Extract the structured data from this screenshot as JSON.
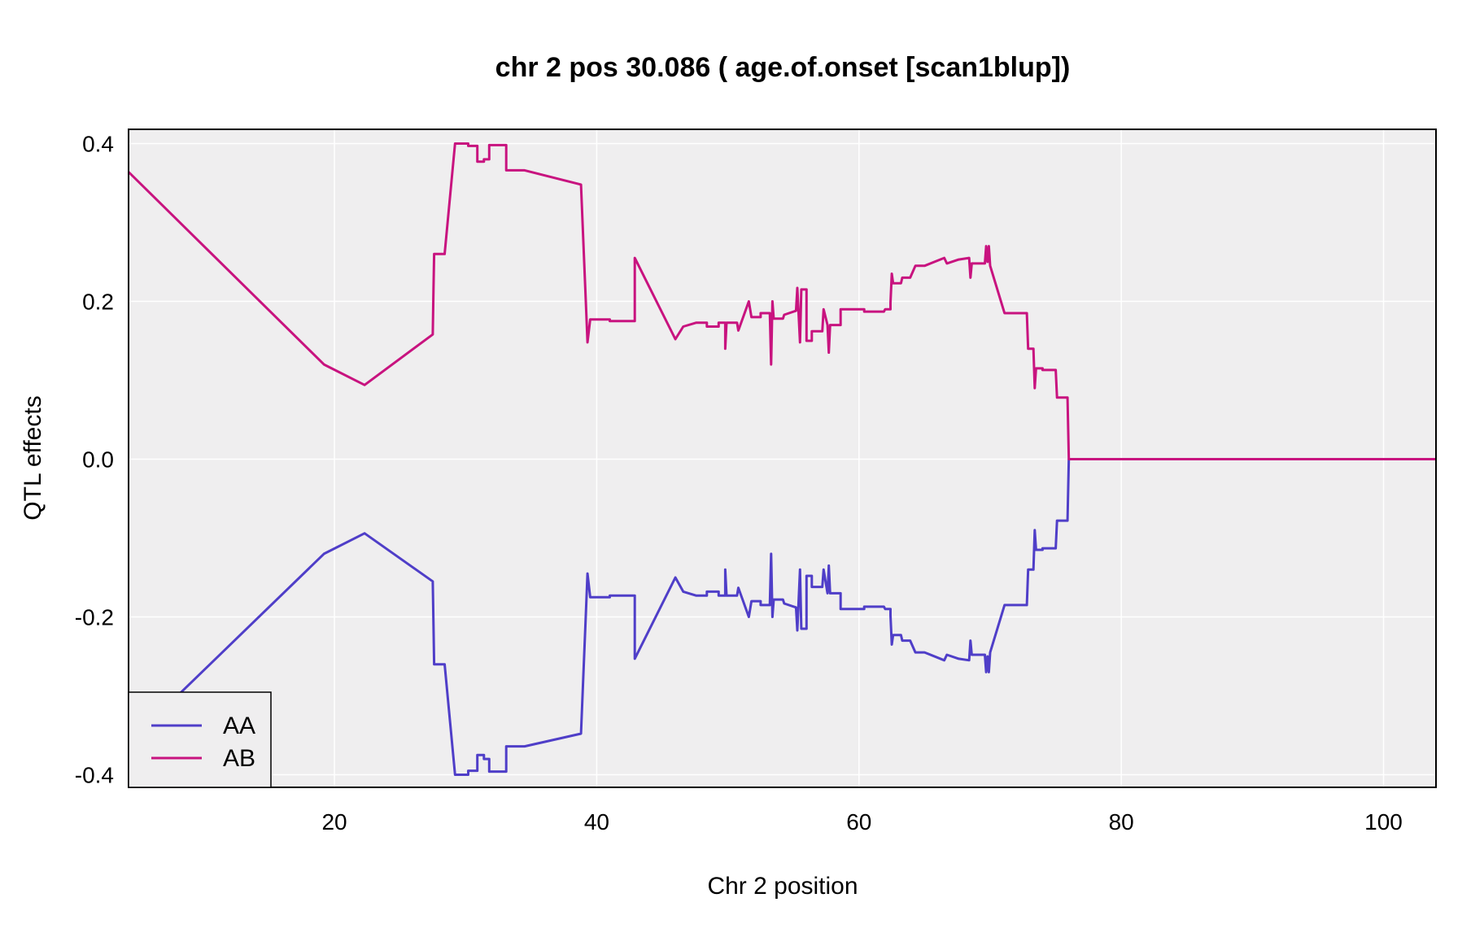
{
  "chart_data": {
    "type": "line",
    "title": "chr 2 pos 30.086 ( age.of.onset  [scan1blup])",
    "xlabel": "Chr 2 position",
    "ylabel": "QTL effects",
    "xlim": [
      4.3,
      104
    ],
    "ylim": [
      -0.416,
      0.418
    ],
    "xticks": [
      20,
      40,
      60,
      80,
      100
    ],
    "ytick_values": [
      0.4,
      0.2,
      0.0,
      -0.2,
      -0.4
    ],
    "ytick_labels": [
      "0.4",
      "0.2",
      "0.0",
      "-0.2",
      "-0.4"
    ],
    "grid": true,
    "legend_position": "bottom-left",
    "series": [
      {
        "name": "AA",
        "color": "#4f3ec8",
        "points": [
          [
            4.3,
            -0.36
          ],
          [
            19.2,
            -0.12
          ],
          [
            22.3,
            -0.094
          ],
          [
            27.5,
            -0.155
          ],
          [
            27.55,
            -0.21
          ],
          [
            27.6,
            -0.26
          ],
          [
            28.4,
            -0.26
          ],
          [
            29.2,
            -0.4
          ],
          [
            30.2,
            -0.4
          ],
          [
            30.2,
            -0.395
          ],
          [
            30.9,
            -0.395
          ],
          [
            30.9,
            -0.375
          ],
          [
            31.4,
            -0.375
          ],
          [
            31.4,
            -0.38
          ],
          [
            31.8,
            -0.38
          ],
          [
            31.8,
            -0.396
          ],
          [
            33.1,
            -0.396
          ],
          [
            33.1,
            -0.364
          ],
          [
            34.5,
            -0.364
          ],
          [
            38.8,
            -0.348
          ],
          [
            39.3,
            -0.145
          ],
          [
            39.5,
            -0.175
          ],
          [
            41.0,
            -0.175
          ],
          [
            41.0,
            -0.173
          ],
          [
            42.9,
            -0.173
          ],
          [
            42.9,
            -0.253
          ],
          [
            46.0,
            -0.15
          ],
          [
            46.6,
            -0.168
          ],
          [
            47.6,
            -0.173
          ],
          [
            48.4,
            -0.173
          ],
          [
            48.4,
            -0.168
          ],
          [
            49.3,
            -0.168
          ],
          [
            49.3,
            -0.173
          ],
          [
            49.8,
            -0.173
          ],
          [
            49.8,
            -0.14
          ],
          [
            49.9,
            -0.173
          ],
          [
            50.7,
            -0.173
          ],
          [
            50.8,
            -0.163
          ],
          [
            51.6,
            -0.2
          ],
          [
            51.8,
            -0.18
          ],
          [
            52.5,
            -0.18
          ],
          [
            52.5,
            -0.185
          ],
          [
            53.2,
            -0.185
          ],
          [
            53.3,
            -0.12
          ],
          [
            53.4,
            -0.2
          ],
          [
            53.5,
            -0.178
          ],
          [
            54.2,
            -0.178
          ],
          [
            54.3,
            -0.183
          ],
          [
            55.2,
            -0.188
          ],
          [
            55.3,
            -0.217
          ],
          [
            55.5,
            -0.14
          ],
          [
            55.6,
            -0.215
          ],
          [
            56.0,
            -0.215
          ],
          [
            56.0,
            -0.148
          ],
          [
            56.4,
            -0.148
          ],
          [
            56.4,
            -0.162
          ],
          [
            57.2,
            -0.162
          ],
          [
            57.3,
            -0.14
          ],
          [
            57.6,
            -0.17
          ],
          [
            57.7,
            -0.135
          ],
          [
            57.8,
            -0.17
          ],
          [
            58.6,
            -0.17
          ],
          [
            58.6,
            -0.19
          ],
          [
            60.4,
            -0.19
          ],
          [
            60.4,
            -0.187
          ],
          [
            61.9,
            -0.187
          ],
          [
            62.0,
            -0.19
          ],
          [
            62.4,
            -0.19
          ],
          [
            62.4,
            -0.198
          ],
          [
            62.5,
            -0.235
          ],
          [
            62.6,
            -0.223
          ],
          [
            63.2,
            -0.223
          ],
          [
            63.3,
            -0.23
          ],
          [
            63.9,
            -0.23
          ],
          [
            64.3,
            -0.245
          ],
          [
            65.0,
            -0.245
          ],
          [
            66.5,
            -0.255
          ],
          [
            66.7,
            -0.248
          ],
          [
            67.6,
            -0.253
          ],
          [
            68.4,
            -0.255
          ],
          [
            68.5,
            -0.23
          ],
          [
            68.6,
            -0.248
          ],
          [
            69.6,
            -0.248
          ],
          [
            69.7,
            -0.27
          ],
          [
            69.8,
            -0.25
          ],
          [
            69.9,
            -0.27
          ],
          [
            70.0,
            -0.245
          ],
          [
            71.1,
            -0.185
          ],
          [
            72.8,
            -0.185
          ],
          [
            72.9,
            -0.14
          ],
          [
            73.3,
            -0.14
          ],
          [
            73.4,
            -0.09
          ],
          [
            73.5,
            -0.115
          ],
          [
            74.0,
            -0.115
          ],
          [
            74.0,
            -0.113
          ],
          [
            75.0,
            -0.113
          ],
          [
            75.1,
            -0.078
          ],
          [
            75.9,
            -0.078
          ],
          [
            76.0,
            0.0
          ],
          [
            104.0,
            0.0
          ]
        ]
      },
      {
        "name": "AB",
        "color": "#c8137f",
        "points": [
          [
            4.3,
            0.364
          ],
          [
            19.2,
            0.12
          ],
          [
            22.3,
            0.094
          ],
          [
            27.5,
            0.158
          ],
          [
            27.55,
            0.215
          ],
          [
            27.6,
            0.26
          ],
          [
            28.4,
            0.26
          ],
          [
            29.2,
            0.4
          ],
          [
            30.2,
            0.4
          ],
          [
            30.2,
            0.397
          ],
          [
            30.9,
            0.397
          ],
          [
            30.9,
            0.377
          ],
          [
            31.4,
            0.377
          ],
          [
            31.4,
            0.38
          ],
          [
            31.8,
            0.38
          ],
          [
            31.8,
            0.398
          ],
          [
            33.1,
            0.398
          ],
          [
            33.1,
            0.366
          ],
          [
            34.5,
            0.366
          ],
          [
            38.8,
            0.348
          ],
          [
            39.3,
            0.148
          ],
          [
            39.5,
            0.177
          ],
          [
            41.0,
            0.177
          ],
          [
            41.0,
            0.175
          ],
          [
            42.9,
            0.175
          ],
          [
            42.9,
            0.255
          ],
          [
            46.0,
            0.152
          ],
          [
            46.6,
            0.168
          ],
          [
            47.6,
            0.173
          ],
          [
            48.4,
            0.173
          ],
          [
            48.4,
            0.168
          ],
          [
            49.3,
            0.168
          ],
          [
            49.3,
            0.173
          ],
          [
            49.8,
            0.173
          ],
          [
            49.8,
            0.14
          ],
          [
            49.9,
            0.173
          ],
          [
            50.7,
            0.173
          ],
          [
            50.8,
            0.163
          ],
          [
            51.6,
            0.2
          ],
          [
            51.8,
            0.18
          ],
          [
            52.5,
            0.18
          ],
          [
            52.5,
            0.185
          ],
          [
            53.2,
            0.185
          ],
          [
            53.3,
            0.12
          ],
          [
            53.4,
            0.2
          ],
          [
            53.5,
            0.178
          ],
          [
            54.2,
            0.178
          ],
          [
            54.3,
            0.183
          ],
          [
            55.2,
            0.188
          ],
          [
            55.3,
            0.217
          ],
          [
            55.5,
            0.148
          ],
          [
            55.6,
            0.215
          ],
          [
            56.0,
            0.215
          ],
          [
            56.0,
            0.15
          ],
          [
            56.4,
            0.15
          ],
          [
            56.4,
            0.162
          ],
          [
            57.2,
            0.162
          ],
          [
            57.3,
            0.19
          ],
          [
            57.6,
            0.17
          ],
          [
            57.7,
            0.135
          ],
          [
            57.8,
            0.17
          ],
          [
            58.6,
            0.17
          ],
          [
            58.6,
            0.19
          ],
          [
            60.4,
            0.19
          ],
          [
            60.4,
            0.187
          ],
          [
            61.9,
            0.187
          ],
          [
            62.0,
            0.19
          ],
          [
            62.4,
            0.19
          ],
          [
            62.4,
            0.198
          ],
          [
            62.5,
            0.235
          ],
          [
            62.6,
            0.223
          ],
          [
            63.2,
            0.223
          ],
          [
            63.3,
            0.23
          ],
          [
            63.9,
            0.23
          ],
          [
            64.3,
            0.245
          ],
          [
            65.0,
            0.245
          ],
          [
            66.5,
            0.255
          ],
          [
            66.7,
            0.248
          ],
          [
            67.6,
            0.253
          ],
          [
            68.4,
            0.255
          ],
          [
            68.5,
            0.23
          ],
          [
            68.6,
            0.248
          ],
          [
            69.6,
            0.248
          ],
          [
            69.7,
            0.27
          ],
          [
            69.8,
            0.25
          ],
          [
            69.9,
            0.27
          ],
          [
            70.0,
            0.245
          ],
          [
            71.1,
            0.185
          ],
          [
            72.8,
            0.185
          ],
          [
            72.9,
            0.14
          ],
          [
            73.3,
            0.14
          ],
          [
            73.4,
            0.09
          ],
          [
            73.5,
            0.115
          ],
          [
            74.0,
            0.115
          ],
          [
            74.0,
            0.113
          ],
          [
            75.0,
            0.113
          ],
          [
            75.1,
            0.078
          ],
          [
            75.9,
            0.078
          ],
          [
            76.0,
            0.0
          ],
          [
            104.0,
            0.0
          ]
        ]
      }
    ]
  }
}
